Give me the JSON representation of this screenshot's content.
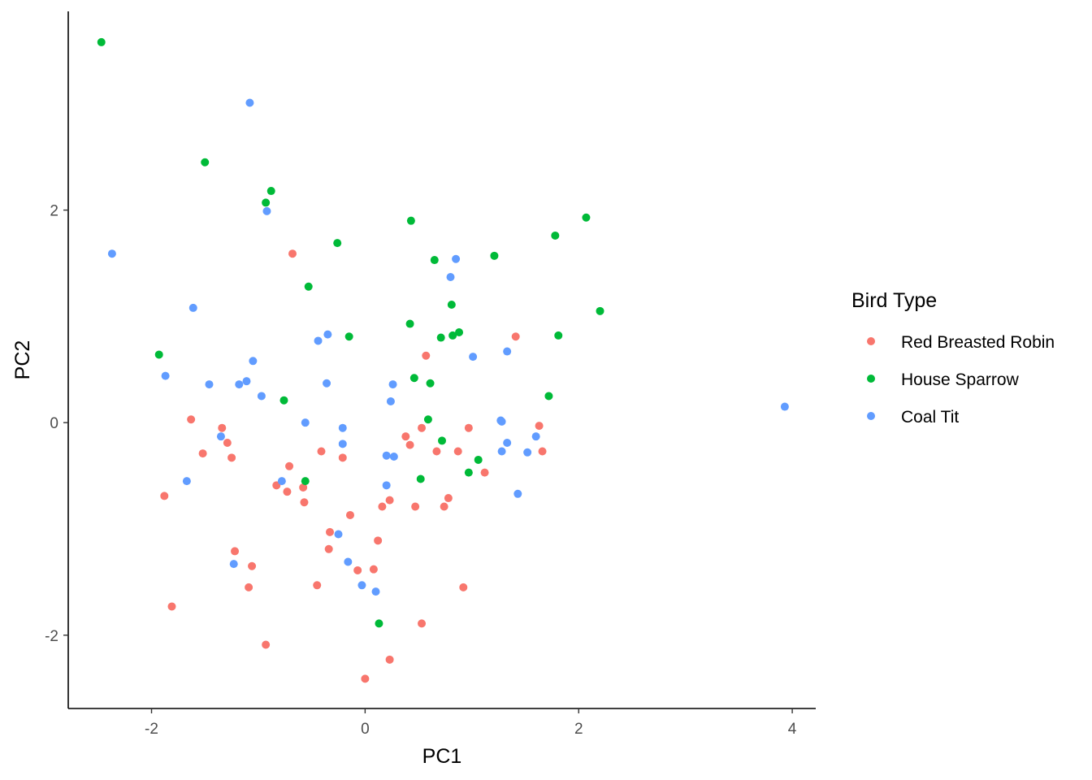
{
  "chart_data": {
    "type": "scatter",
    "xlabel": "PC1",
    "ylabel": "PC2",
    "xlim": [
      -2.78,
      4.22
    ],
    "ylim": [
      -2.69,
      3.87
    ],
    "x_ticks": [
      {
        "value": -2,
        "label": "-2"
      },
      {
        "value": 0,
        "label": "0"
      },
      {
        "value": 2,
        "label": "2"
      },
      {
        "value": 4,
        "label": "4"
      }
    ],
    "y_ticks": [
      {
        "value": -2,
        "label": "-2"
      },
      {
        "value": 0,
        "label": "0"
      },
      {
        "value": 2,
        "label": "2"
      }
    ],
    "grid": false,
    "legend": {
      "title": "Bird Type",
      "placement": "right"
    },
    "series": [
      {
        "name": "Red Breasted Robin",
        "color": "#F8766D",
        "points": [
          [
            -0.68,
            1.59
          ],
          [
            1.41,
            0.81
          ],
          [
            0.57,
            0.63
          ],
          [
            -1.63,
            0.03
          ],
          [
            -1.34,
            -0.05
          ],
          [
            -1.29,
            -0.19
          ],
          [
            -1.52,
            -0.29
          ],
          [
            -1.25,
            -0.33
          ],
          [
            -0.71,
            -0.41
          ],
          [
            -0.41,
            -0.27
          ],
          [
            -0.21,
            -0.33
          ],
          [
            0.38,
            -0.13
          ],
          [
            0.53,
            -0.05
          ],
          [
            0.42,
            -0.21
          ],
          [
            0.67,
            -0.27
          ],
          [
            0.87,
            -0.27
          ],
          [
            0.97,
            -0.05
          ],
          [
            1.63,
            -0.03
          ],
          [
            1.66,
            -0.27
          ],
          [
            1.12,
            -0.47
          ],
          [
            -0.83,
            -0.59
          ],
          [
            -0.58,
            -0.61
          ],
          [
            -0.73,
            -0.65
          ],
          [
            -0.57,
            -0.75
          ],
          [
            -1.88,
            -0.69
          ],
          [
            0.78,
            -0.71
          ],
          [
            0.74,
            -0.79
          ],
          [
            0.47,
            -0.79
          ],
          [
            0.23,
            -0.73
          ],
          [
            0.16,
            -0.79
          ],
          [
            -0.14,
            -0.87
          ],
          [
            -0.33,
            -1.03
          ],
          [
            0.12,
            -1.11
          ],
          [
            -1.22,
            -1.21
          ],
          [
            -0.34,
            -1.19
          ],
          [
            -1.06,
            -1.35
          ],
          [
            -1.09,
            -1.55
          ],
          [
            -0.45,
            -1.53
          ],
          [
            -0.07,
            -1.39
          ],
          [
            0.08,
            -1.38
          ],
          [
            0.92,
            -1.55
          ],
          [
            -1.81,
            -1.73
          ],
          [
            0.53,
            -1.89
          ],
          [
            -0.93,
            -2.09
          ],
          [
            0.23,
            -2.23
          ],
          [
            0.0,
            -2.41
          ]
        ]
      },
      {
        "name": "House Sparrow",
        "color": "#00BA38",
        "points": [
          [
            -2.47,
            3.58
          ],
          [
            -1.5,
            2.45
          ],
          [
            -0.88,
            2.18
          ],
          [
            -0.93,
            2.07
          ],
          [
            0.43,
            1.9
          ],
          [
            -0.26,
            1.69
          ],
          [
            0.65,
            1.53
          ],
          [
            1.21,
            1.57
          ],
          [
            1.78,
            1.76
          ],
          [
            2.07,
            1.93
          ],
          [
            -0.53,
            1.28
          ],
          [
            0.81,
            1.11
          ],
          [
            2.2,
            1.05
          ],
          [
            0.42,
            0.93
          ],
          [
            0.88,
            0.85
          ],
          [
            0.82,
            0.82
          ],
          [
            0.71,
            0.8
          ],
          [
            1.81,
            0.82
          ],
          [
            -0.15,
            0.81
          ],
          [
            -1.93,
            0.64
          ],
          [
            0.46,
            0.42
          ],
          [
            0.61,
            0.37
          ],
          [
            -0.76,
            0.21
          ],
          [
            1.72,
            0.25
          ],
          [
            0.59,
            0.03
          ],
          [
            0.72,
            -0.17
          ],
          [
            1.06,
            -0.35
          ],
          [
            0.97,
            -0.47
          ],
          [
            0.52,
            -0.53
          ],
          [
            -0.56,
            -0.55
          ],
          [
            0.13,
            -1.89
          ]
        ]
      },
      {
        "name": "Coal Tit",
        "color": "#619CFF",
        "points": [
          [
            -1.08,
            3.01
          ],
          [
            -0.92,
            1.99
          ],
          [
            -2.37,
            1.59
          ],
          [
            0.85,
            1.54
          ],
          [
            0.8,
            1.37
          ],
          [
            -1.61,
            1.08
          ],
          [
            -0.35,
            0.83
          ],
          [
            -0.44,
            0.77
          ],
          [
            1.33,
            0.67
          ],
          [
            1.01,
            0.62
          ],
          [
            -1.05,
            0.58
          ],
          [
            -1.87,
            0.44
          ],
          [
            -1.11,
            0.39
          ],
          [
            -1.18,
            0.36
          ],
          [
            -1.46,
            0.36
          ],
          [
            -0.36,
            0.37
          ],
          [
            0.26,
            0.36
          ],
          [
            -0.97,
            0.25
          ],
          [
            0.24,
            0.2
          ],
          [
            -0.56,
            0.0
          ],
          [
            -0.21,
            -0.05
          ],
          [
            1.27,
            0.02
          ],
          [
            1.28,
            0.01
          ],
          [
            1.6,
            -0.13
          ],
          [
            1.33,
            -0.19
          ],
          [
            -1.35,
            -0.13
          ],
          [
            -0.21,
            -0.2
          ],
          [
            1.28,
            -0.27
          ],
          [
            1.52,
            -0.28
          ],
          [
            0.2,
            -0.31
          ],
          [
            0.27,
            -0.32
          ],
          [
            -1.67,
            -0.55
          ],
          [
            -0.78,
            -0.55
          ],
          [
            0.2,
            -0.59
          ],
          [
            1.43,
            -0.67
          ],
          [
            -0.25,
            -1.05
          ],
          [
            -1.23,
            -1.33
          ],
          [
            -0.16,
            -1.31
          ],
          [
            -0.03,
            -1.53
          ],
          [
            0.1,
            -1.59
          ],
          [
            3.93,
            0.15
          ]
        ]
      }
    ]
  }
}
